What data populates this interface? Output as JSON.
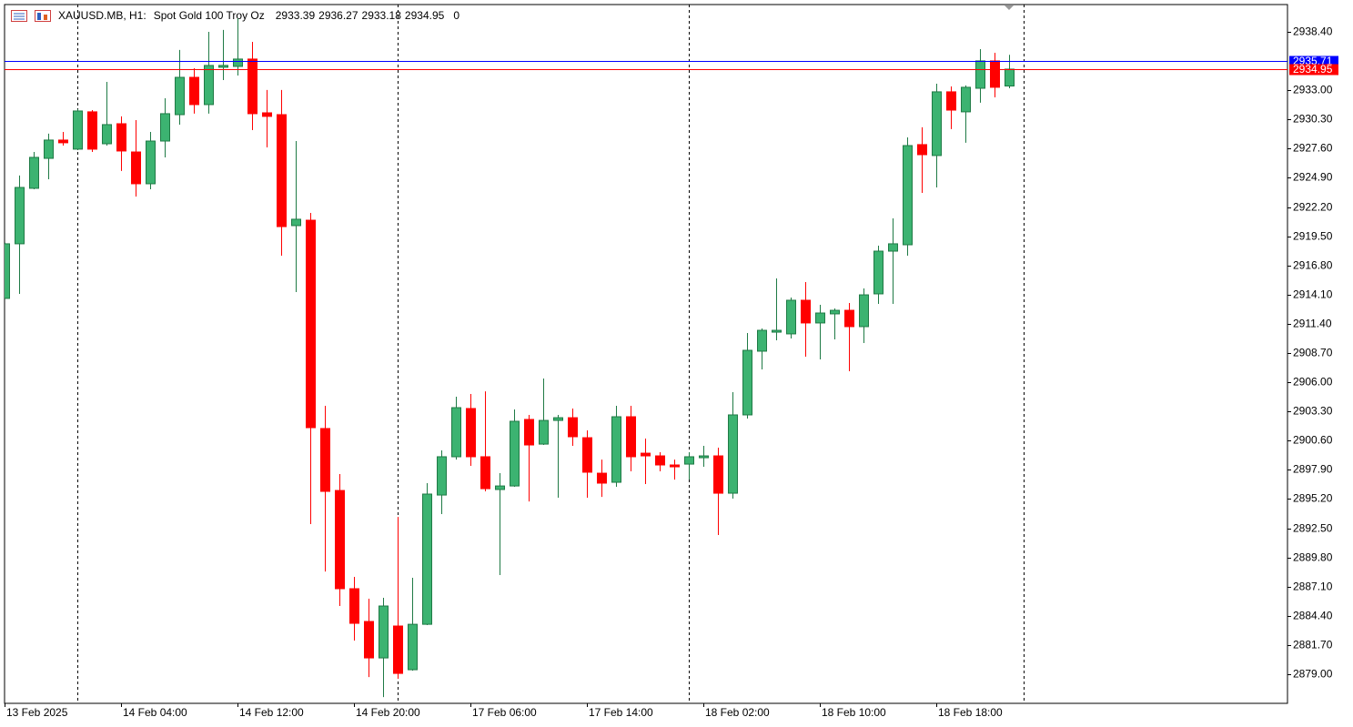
{
  "chart_data": {
    "type": "candlestick",
    "title": "XAUUSD.MB, H1:",
    "subtitle": "Spot Gold 100 Troy Oz",
    "header_ohlc": [
      2933.39,
      2936.27,
      2933.18,
      2934.95
    ],
    "header_extra": 0,
    "categories": [
      "13 Feb 2025",
      null,
      null,
      null,
      null,
      null,
      null,
      null,
      "14 Feb 04:00",
      null,
      null,
      null,
      null,
      null,
      null,
      null,
      "14 Feb 12:00",
      null,
      null,
      null,
      null,
      null,
      null,
      null,
      "14 Feb 20:00",
      null,
      null,
      null,
      null,
      null,
      null,
      null,
      "17 Feb 06:00",
      null,
      null,
      null,
      null,
      null,
      null,
      null,
      "17 Feb 14:00",
      null,
      null,
      null,
      null,
      null,
      null,
      null,
      "18 Feb 02:00",
      null,
      null,
      null,
      null,
      null,
      null,
      null,
      "18 Feb 10:00",
      null,
      null,
      null,
      null,
      null,
      null,
      null,
      "18 Feb 18:00",
      null,
      null,
      null,
      null,
      null
    ],
    "open": [
      2913.75,
      2918.8,
      2923.93,
      2926.7,
      2928.39,
      2927.55,
      2931.0,
      2928.05,
      2929.9,
      2927.29,
      2924.35,
      2928.3,
      2930.74,
      2934.19,
      2931.67,
      2935.12,
      2935.2,
      2935.88,
      2930.91,
      2930.74,
      2920.48,
      2920.98,
      2901.72,
      2895.99,
      2886.91,
      2883.88,
      2880.51,
      2883.46,
      2879.42,
      2883.62,
      2895.57,
      2899.11,
      2903.57,
      2899.11,
      2896.08,
      2896.41,
      2902.56,
      2900.28,
      2902.47,
      2902.72,
      2900.87,
      2897.59,
      2896.75,
      2902.81,
      2899.44,
      2899.19,
      2898.35,
      2898.43,
      2899.02,
      2899.19,
      2895.74,
      2902.98,
      2908.87,
      2910.63,
      2910.47,
      2913.58,
      2911.48,
      2912.32,
      2912.65,
      2911.14,
      2914.17,
      2918.12,
      2918.71,
      2927.97,
      2926.96,
      2932.85,
      2931.0,
      2933.18,
      2935.71,
      2933.39
    ],
    "high": [
      2918.9,
      2925.11,
      2927.29,
      2928.98,
      2929.14,
      2931.25,
      2931.16,
      2933.77,
      2930.58,
      2930.24,
      2929.14,
      2932.26,
      2936.72,
      2935.03,
      2938.4,
      2938.57,
      2939.66,
      2937.47,
      2933.02,
      2933.02,
      2928.3,
      2921.66,
      2903.82,
      2897.51,
      2888.0,
      2885.98,
      2886.07,
      2893.55,
      2887.92,
      2896.67,
      2899.7,
      2904.66,
      2904.91,
      2905.16,
      2897.59,
      2903.48,
      2902.98,
      2906.34,
      2902.98,
      2903.57,
      2901.55,
      2898.85,
      2903.82,
      2903.82,
      2900.79,
      2899.53,
      2898.85,
      2899.53,
      2900.12,
      2899.95,
      2905.08,
      2910.55,
      2910.97,
      2915.6,
      2913.83,
      2915.26,
      2913.16,
      2912.82,
      2913.33,
      2914.67,
      2918.63,
      2921.15,
      2928.64,
      2929.57,
      2933.6,
      2933.35,
      2933.44,
      2936.8,
      2936.46,
      2936.27
    ],
    "low": [
      2913.7,
      2914.17,
      2923.84,
      2924.77,
      2927.88,
      2927.46,
      2927.29,
      2927.88,
      2925.53,
      2923.17,
      2923.84,
      2926.79,
      2929.82,
      2930.83,
      2930.83,
      2933.94,
      2934.36,
      2929.31,
      2927.71,
      2917.7,
      2914.34,
      2892.88,
      2888.5,
      2885.31,
      2882.11,
      2878.74,
      2876.89,
      2878.58,
      2879.33,
      2883.54,
      2893.81,
      2898.85,
      2898.27,
      2895.91,
      2888.17,
      2896.33,
      2894.98,
      2900.2,
      2895.32,
      2900.12,
      2895.32,
      2895.4,
      2896.33,
      2897.76,
      2896.58,
      2897.76,
      2897.0,
      2897.0,
      2898.18,
      2891.87,
      2895.24,
      2902.64,
      2907.18,
      2909.88,
      2910.04,
      2908.36,
      2908.11,
      2909.96,
      2907.02,
      2909.62,
      2913.24,
      2913.24,
      2917.7,
      2923.51,
      2924.01,
      2929.4,
      2928.14,
      2931.84,
      2932.34,
      2933.18
    ],
    "close": [
      2918.8,
      2924.01,
      2926.79,
      2928.39,
      2928.14,
      2931.08,
      2927.55,
      2929.82,
      2927.38,
      2924.35,
      2928.3,
      2930.83,
      2934.19,
      2931.67,
      2935.29,
      2935.29,
      2935.88,
      2930.83,
      2930.58,
      2920.39,
      2921.07,
      2901.8,
      2895.91,
      2886.91,
      2883.71,
      2880.51,
      2885.31,
      2879.08,
      2883.62,
      2895.66,
      2899.11,
      2903.65,
      2899.11,
      2896.16,
      2896.41,
      2902.39,
      2900.2,
      2902.47,
      2902.72,
      2900.96,
      2897.68,
      2896.67,
      2902.81,
      2899.11,
      2899.19,
      2898.35,
      2898.18,
      2899.11,
      2899.19,
      2895.74,
      2902.98,
      2908.95,
      2910.8,
      2910.8,
      2913.58,
      2911.48,
      2912.4,
      2912.65,
      2911.14,
      2914.08,
      2918.12,
      2918.8,
      2927.88,
      2927.04,
      2932.85,
      2931.16,
      2933.27,
      2935.71,
      2933.27,
      2934.95
    ],
    "up_color": "#3cb371",
    "up_border": "#1f7a45",
    "down_color": "#ff0000",
    "ylim": [
      2876.31,
      2940.92
    ],
    "yticks": [
      {
        "value": 2938.4,
        "label": "2938.40"
      },
      {
        "value": 2933,
        "label": "2933.00"
      },
      {
        "value": 2930.3,
        "label": "2930.30"
      },
      {
        "value": 2927.6,
        "label": "2927.60"
      },
      {
        "value": 2924.9,
        "label": "2924.90"
      },
      {
        "value": 2922.2,
        "label": "2922.20"
      },
      {
        "value": 2919.5,
        "label": "2919.50"
      },
      {
        "value": 2916.8,
        "label": "2916.80"
      },
      {
        "value": 2914.1,
        "label": "2914.10"
      },
      {
        "value": 2911.4,
        "label": "2911.40"
      },
      {
        "value": 2908.7,
        "label": "2908.70"
      },
      {
        "value": 2906,
        "label": "2906.00"
      },
      {
        "value": 2903.3,
        "label": "2903.30"
      },
      {
        "value": 2900.6,
        "label": "2900.60"
      },
      {
        "value": 2897.9,
        "label": "2897.90"
      },
      {
        "value": 2895.2,
        "label": "2895.20"
      },
      {
        "value": 2892.5,
        "label": "2892.50"
      },
      {
        "value": 2889.8,
        "label": "2889.80"
      },
      {
        "value": 2887.1,
        "label": "2887.10"
      },
      {
        "value": 2884.4,
        "label": "2884.40"
      },
      {
        "value": 2881.7,
        "label": "2881.70"
      },
      {
        "value": 2879,
        "label": "2879.00"
      }
    ],
    "price_lines": [
      {
        "value": 2935.71,
        "color": "#0000ff"
      },
      {
        "value": 2934.95,
        "color": "#ff0000"
      }
    ],
    "grid": false
  }
}
